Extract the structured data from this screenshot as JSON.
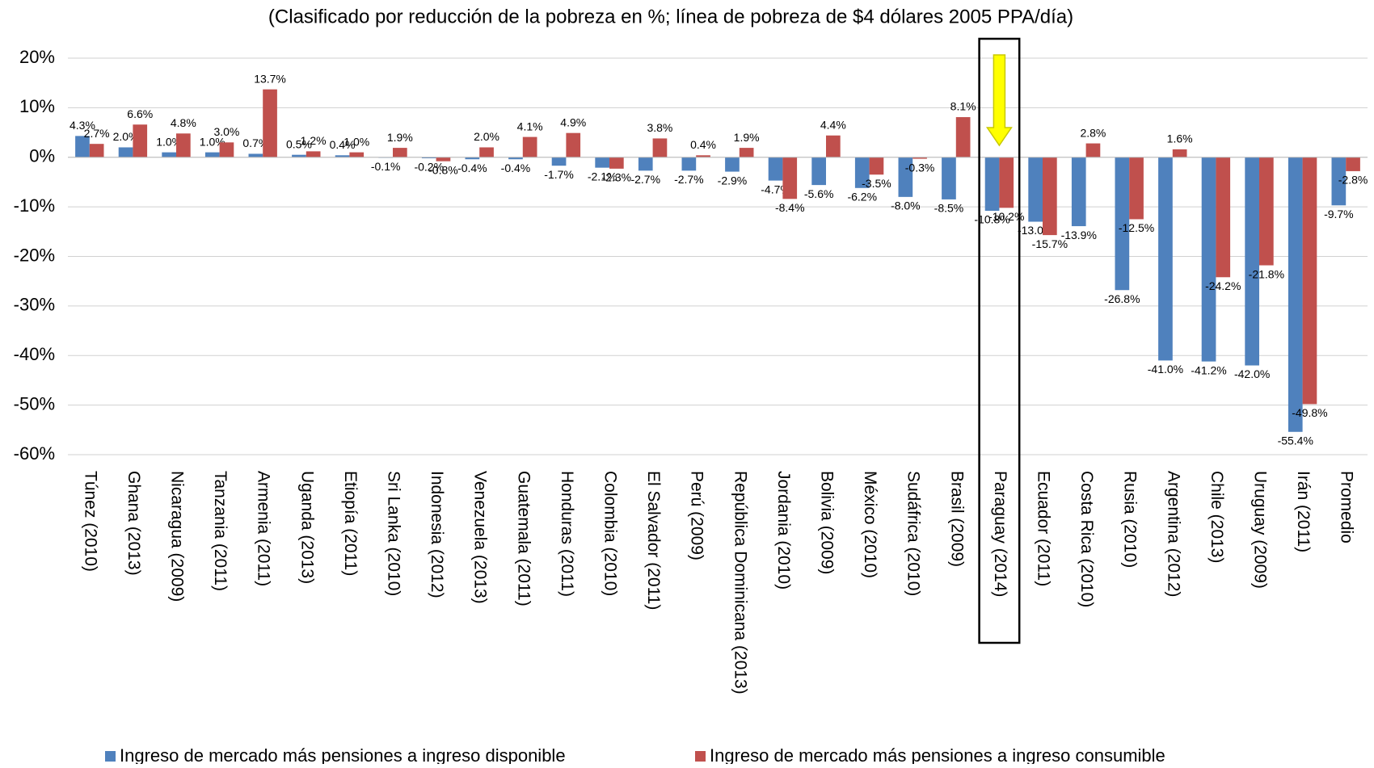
{
  "chart_data": {
    "type": "bar",
    "title": "(Clasificado por reducción de la pobreza en %; línea de pobreza de $4 dólares 2005 PPA/día)",
    "categories": [
      "Túnez (2010)",
      "Ghana (2013)",
      "Nicaragua (2009)",
      "Tanzania (2011)",
      "Armenia (2011)",
      "Uganda (2013)",
      "Etiopía (2011)",
      "Sri Lanka (2010)",
      "Indonesia (2012)",
      "Venezuela (2013)",
      "Guatemala (2011)",
      "Honduras (2011)",
      "Colombia (2010)",
      "El Salvador (2011)",
      "Perú (2009)",
      "República Dominicana (2013)",
      "Jordania (2010)",
      "Bolivia (2009)",
      "México (2010)",
      "Sudáfrica (2010)",
      "Brasil (2009)",
      "Paraguay (2014)",
      "Ecuador (2011)",
      "Costa Rica (2010)",
      "Rusia (2010)",
      "Argentina (2012)",
      "Chile (2013)",
      "Uruguay (2009)",
      "Irán (2011)",
      "Promedio"
    ],
    "series": [
      {
        "name": "Ingreso de mercado más pensiones a ingreso disponible",
        "color": "#4f81bd",
        "values": [
          4.3,
          2.0,
          1.0,
          1.0,
          0.7,
          0.5,
          0.4,
          -0.1,
          -0.2,
          -0.4,
          -0.4,
          -1.7,
          -2.1,
          -2.7,
          -2.7,
          -2.9,
          -4.7,
          -5.6,
          -6.2,
          -8.0,
          -8.5,
          -10.8,
          -13.0,
          -13.9,
          -26.8,
          -41.0,
          -41.2,
          -42.0,
          -55.4,
          -9.7
        ],
        "value_labels": [
          "4.3%",
          "2.0%",
          "1.0%",
          "1.0%",
          "0.7%",
          "0.5%",
          "0.4%",
          "-0.1%",
          "-0.2%",
          "-0.4%",
          "-0.4%",
          "-1.7%",
          "-2.1%",
          "-2.7%",
          "-2.7%",
          "-2.9%",
          "-4.7%",
          "-5.6%",
          "-6.2%",
          "-8.0%",
          "-8.5%",
          "-10.8%",
          "-13.0%",
          "-13.9%",
          "-26.8%",
          "-41.0%",
          "-41.2%",
          "-42.0%",
          "-55.4%",
          "-9.7%"
        ]
      },
      {
        "name": "Ingreso de mercado más pensiones a ingreso consumible",
        "color": "#c0504d",
        "values": [
          2.7,
          6.6,
          4.8,
          3.0,
          13.7,
          1.2,
          1.0,
          1.9,
          -0.8,
          2.0,
          4.1,
          4.9,
          -2.3,
          3.8,
          0.4,
          1.9,
          -8.4,
          4.4,
          -3.5,
          -0.3,
          8.1,
          -10.2,
          -15.7,
          2.8,
          -12.5,
          1.6,
          -24.2,
          -21.8,
          -49.8,
          -2.8
        ],
        "value_labels": [
          "2.7%",
          "6.6%",
          "4.8%",
          "3.0%",
          "13.7%",
          "1.2%",
          "1.0%",
          "1.9%",
          "-0.8%",
          "2.0%",
          "4.1%",
          "4.9%",
          "-2.3%",
          "3.8%",
          "0.4%",
          "1.9%",
          "-8.4%",
          "4.4%",
          "-3.5%",
          "-0.3%",
          "8.1%",
          "-10.2%",
          "-15.7%",
          "2.8%",
          "-12.5%",
          "1.6%",
          "-24.2%",
          "-21.8%",
          "-49.8%",
          "-2.8%"
        ]
      }
    ],
    "ylim": [
      -60,
      20
    ],
    "yticks": [
      {
        "value": -60,
        "label": "-60%"
      },
      {
        "value": -50,
        "label": "-50%"
      },
      {
        "value": -40,
        "label": "-40%"
      },
      {
        "value": -30,
        "label": "-30%"
      },
      {
        "value": -20,
        "label": "-20%"
      },
      {
        "value": -10,
        "label": "-10%"
      },
      {
        "value": 0,
        "label": "0%"
      },
      {
        "value": 10,
        "label": "10%"
      },
      {
        "value": 20,
        "label": "20%"
      }
    ],
    "grid": true,
    "legend": "bottom"
  }
}
